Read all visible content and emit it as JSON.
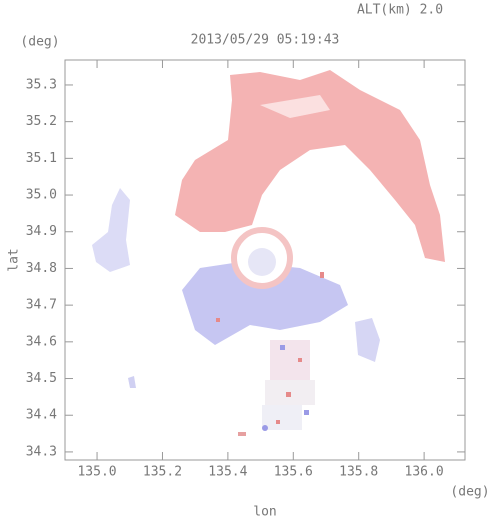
{
  "chart_data": {
    "type": "map",
    "title": "2013/05/29 05:19:43",
    "subtitle": "ALT(km) 2.0",
    "x_label": "lon",
    "y_label": "lat",
    "x_unit": "(deg)",
    "y_unit": "(deg)",
    "xlim": [
      134.902,
      136.125
    ],
    "ylim": [
      34.278,
      35.368
    ],
    "xticks": [
      {
        "value": 135,
        "label": "135.0"
      },
      135.2,
      135.4,
      135.6,
      135.8,
      {
        "value": 136,
        "label": "136.0"
      }
    ],
    "yticks": [
      34.3,
      34.4,
      34.5,
      34.6,
      34.7,
      34.8,
      34.9,
      {
        "value": 35,
        "label": "35.0"
      },
      35.1,
      35.2,
      35.3
    ]
  }
}
